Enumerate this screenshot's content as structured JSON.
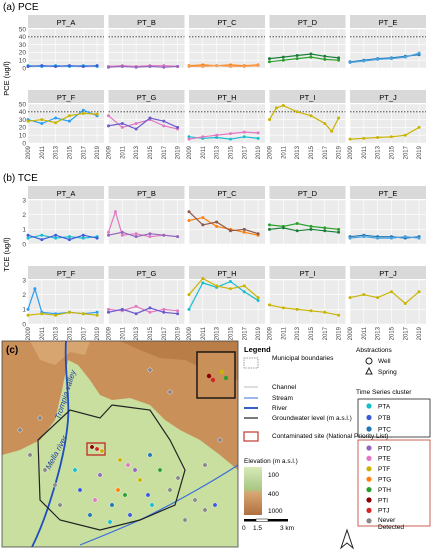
{
  "colors": {
    "panel_bg": "#ebebeb",
    "strip_bg": "#d9d9d9",
    "grid": "#ffffff",
    "threshold": "#333333",
    "land_low": "#c8dfa0",
    "land_high": "#c9905a",
    "river": "#1f4fbf",
    "basin": "#222222",
    "site": "#c0392b"
  },
  "chart_data": [
    {
      "type": "line",
      "title": "(a) PCE",
      "ylabel": "PCE (ug/l)",
      "ylim": [
        0,
        50
      ],
      "yticks": [
        0,
        10,
        20,
        30,
        40,
        50
      ],
      "xlim": [
        2009,
        2020
      ],
      "xticks": [
        "2009",
        "2011",
        "2013",
        "2015",
        "2017",
        "2019"
      ],
      "threshold": 40,
      "grid": true,
      "panels": [
        {
          "name": "PT_A",
          "series": [
            {
              "color": "#17becf",
              "x": [
                2009,
                2011,
                2013,
                2015,
                2017,
                2019
              ],
              "y": [
                3,
                2,
                3,
                2,
                3,
                2
              ]
            },
            {
              "color": "#3b5bdb",
              "x": [
                2009,
                2011,
                2013,
                2015,
                2017,
                2019
              ],
              "y": [
                2,
                3,
                2,
                3,
                2,
                3
              ]
            }
          ]
        },
        {
          "name": "PT_B",
          "series": [
            {
              "color": "#e377c2",
              "x": [
                2009,
                2011,
                2013,
                2015,
                2017,
                2019
              ],
              "y": [
                2,
                3,
                2,
                3,
                3,
                2
              ]
            },
            {
              "color": "#9467bd",
              "x": [
                2009,
                2011,
                2013,
                2015,
                2017,
                2019
              ],
              "y": [
                1,
                2,
                1,
                2,
                1,
                2
              ]
            }
          ]
        },
        {
          "name": "PT_C",
          "series": [
            {
              "color": "#ff7f0e",
              "x": [
                2009,
                2011,
                2013,
                2015,
                2017,
                2019
              ],
              "y": [
                3,
                4,
                3,
                4,
                3,
                4
              ]
            },
            {
              "color": "#f4a261",
              "x": [
                2009,
                2011,
                2013,
                2015,
                2017,
                2019
              ],
              "y": [
                2,
                2,
                3,
                2,
                2,
                3
              ]
            }
          ]
        },
        {
          "name": "PT_D",
          "series": [
            {
              "color": "#2ca02c",
              "x": [
                2009,
                2011,
                2013,
                2015,
                2017,
                2019
              ],
              "y": [
                8,
                10,
                12,
                14,
                11,
                10
              ]
            },
            {
              "color": "#1b7f3a",
              "x": [
                2009,
                2011,
                2013,
                2015,
                2017,
                2019
              ],
              "y": [
                12,
                14,
                16,
                18,
                15,
                13
              ]
            }
          ]
        },
        {
          "name": "PT_E",
          "series": [
            {
              "color": "#1f77b4",
              "x": [
                2009,
                2011,
                2013,
                2015,
                2017,
                2019
              ],
              "y": [
                8,
                10,
                12,
                13,
                15,
                17
              ]
            },
            {
              "color": "#4aa3df",
              "x": [
                2009,
                2011,
                2013,
                2015,
                2017,
                2019
              ],
              "y": [
                7,
                9,
                11,
                12,
                14,
                19
              ]
            }
          ]
        },
        {
          "name": "PT_F",
          "series": [
            {
              "color": "#2a9df4",
              "x": [
                2009,
                2011,
                2013,
                2015,
                2017,
                2019
              ],
              "y": [
                30,
                25,
                32,
                28,
                42,
                35
              ]
            },
            {
              "color": "#c9b400",
              "x": [
                2009,
                2011,
                2013,
                2015,
                2017,
                2019
              ],
              "y": [
                28,
                30,
                26,
                35,
                38,
                37
              ]
            }
          ]
        },
        {
          "name": "PT_G",
          "series": [
            {
              "color": "#e377c2",
              "x": [
                2009,
                2011,
                2013,
                2015,
                2017,
                2019
              ],
              "y": [
                35,
                20,
                25,
                30,
                22,
                18
              ]
            },
            {
              "color": "#6a5acd",
              "x": [
                2009,
                2011,
                2013,
                2015,
                2017,
                2019
              ],
              "y": [
                22,
                25,
                18,
                32,
                28,
                20
              ]
            }
          ]
        },
        {
          "name": "PT_H",
          "series": [
            {
              "color": "#17becf",
              "x": [
                2009,
                2011,
                2013,
                2015,
                2017,
                2019
              ],
              "y": [
                8,
                6,
                7,
                5,
                8,
                6
              ]
            },
            {
              "color": "#e377c2",
              "x": [
                2009,
                2011,
                2013,
                2015,
                2017,
                2019
              ],
              "y": [
                5,
                8,
                10,
                12,
                14,
                13
              ]
            }
          ]
        },
        {
          "name": "PT_I",
          "series": [
            {
              "color": "#c9b400",
              "x": [
                2009,
                2010,
                2011,
                2013,
                2015,
                2017,
                2018,
                2019
              ],
              "y": [
                30,
                45,
                48,
                40,
                35,
                25,
                15,
                32
              ]
            }
          ]
        },
        {
          "name": "PT_J",
          "series": [
            {
              "color": "#c9b400",
              "x": [
                2009,
                2011,
                2013,
                2015,
                2017,
                2019
              ],
              "y": [
                5,
                6,
                7,
                8,
                10,
                20
              ]
            }
          ]
        }
      ]
    },
    {
      "type": "line",
      "title": "(b) TCE",
      "ylabel": "TCE (ug/l)",
      "ylim": [
        0,
        3
      ],
      "yticks": [
        0,
        1,
        2,
        3
      ],
      "xlim": [
        2009,
        2020
      ],
      "xticks": [
        "2009",
        "2011",
        "2013",
        "2015",
        "2017",
        "2019"
      ],
      "grid": true,
      "panels": [
        {
          "name": "PT_A",
          "series": [
            {
              "color": "#17becf",
              "x": [
                2009,
                2011,
                2013,
                2015,
                2017,
                2019
              ],
              "y": [
                0.4,
                0.6,
                0.4,
                0.5,
                0.4,
                0.5
              ]
            },
            {
              "color": "#3b5bdb",
              "x": [
                2009,
                2011,
                2013,
                2015,
                2017,
                2019
              ],
              "y": [
                0.6,
                0.3,
                0.6,
                0.3,
                0.6,
                0.4
              ]
            }
          ]
        },
        {
          "name": "PT_B",
          "series": [
            {
              "color": "#e377c2",
              "x": [
                2009,
                2010,
                2011,
                2013,
                2015,
                2017,
                2019
              ],
              "y": [
                0.8,
                2.2,
                0.6,
                0.7,
                0.5,
                0.6,
                0.5
              ]
            },
            {
              "color": "#9467bd",
              "x": [
                2009,
                2011,
                2013,
                2015,
                2017,
                2019
              ],
              "y": [
                0.6,
                0.8,
                0.5,
                0.7,
                0.6,
                0.5
              ]
            }
          ]
        },
        {
          "name": "PT_C",
          "series": [
            {
              "color": "#ff7f0e",
              "x": [
                2009,
                2011,
                2013,
                2015,
                2017,
                2019
              ],
              "y": [
                1.6,
                1.8,
                1.2,
                1.0,
                0.8,
                0.6
              ]
            },
            {
              "color": "#8c564b",
              "x": [
                2009,
                2011,
                2013,
                2015,
                2017,
                2019
              ],
              "y": [
                2.2,
                1.3,
                1.5,
                0.9,
                1.0,
                0.7
              ]
            }
          ]
        },
        {
          "name": "PT_D",
          "series": [
            {
              "color": "#2ca02c",
              "x": [
                2009,
                2011,
                2013,
                2015,
                2017,
                2019
              ],
              "y": [
                1.3,
                1.2,
                1.4,
                1.2,
                1.1,
                1.0
              ]
            },
            {
              "color": "#1b7f3a",
              "x": [
                2009,
                2011,
                2013,
                2015,
                2017,
                2019
              ],
              "y": [
                1.0,
                1.1,
                0.9,
                1.0,
                0.9,
                0.8
              ]
            }
          ]
        },
        {
          "name": "PT_E",
          "series": [
            {
              "color": "#1f77b4",
              "x": [
                2009,
                2011,
                2013,
                2015,
                2017,
                2019
              ],
              "y": [
                0.5,
                0.6,
                0.5,
                0.5,
                0.4,
                0.5
              ]
            },
            {
              "color": "#4aa3df",
              "x": [
                2009,
                2011,
                2013,
                2015,
                2017,
                2019
              ],
              "y": [
                0.4,
                0.5,
                0.4,
                0.4,
                0.5,
                0.4
              ]
            }
          ]
        },
        {
          "name": "PT_F",
          "series": [
            {
              "color": "#2a9df4",
              "x": [
                2009,
                2010,
                2011,
                2013,
                2015,
                2017,
                2019
              ],
              "y": [
                1.0,
                2.4,
                0.8,
                0.7,
                0.8,
                0.7,
                0.8
              ]
            },
            {
              "color": "#c9b400",
              "x": [
                2009,
                2011,
                2013,
                2015,
                2017,
                2019
              ],
              "y": [
                0.6,
                0.7,
                0.6,
                0.8,
                0.7,
                0.6
              ]
            }
          ]
        },
        {
          "name": "PT_G",
          "series": [
            {
              "color": "#e377c2",
              "x": [
                2009,
                2011,
                2013,
                2015,
                2017,
                2019
              ],
              "y": [
                1.0,
                0.9,
                1.2,
                0.8,
                1.0,
                0.9
              ]
            },
            {
              "color": "#6a5acd",
              "x": [
                2009,
                2011,
                2013,
                2015,
                2017,
                2019
              ],
              "y": [
                0.8,
                1.0,
                0.7,
                1.1,
                0.8,
                0.7
              ]
            }
          ]
        },
        {
          "name": "PT_H",
          "series": [
            {
              "color": "#17becf",
              "x": [
                2009,
                2011,
                2013,
                2015,
                2017,
                2019
              ],
              "y": [
                1.0,
                2.8,
                2.5,
                2.9,
                2.2,
                1.6
              ]
            },
            {
              "color": "#c9b400",
              "x": [
                2009,
                2011,
                2013,
                2015,
                2017,
                2019
              ],
              "y": [
                2.0,
                3.1,
                2.6,
                2.4,
                2.6,
                1.8
              ]
            }
          ]
        },
        {
          "name": "PT_I",
          "series": [
            {
              "color": "#c9b400",
              "x": [
                2009,
                2011,
                2013,
                2015,
                2017,
                2019
              ],
              "y": [
                1.3,
                1.1,
                1.0,
                0.9,
                0.8,
                0.6
              ]
            }
          ]
        },
        {
          "name": "PT_J",
          "series": [
            {
              "color": "#c9b400",
              "x": [
                2009,
                2011,
                2013,
                2015,
                2017,
                2019
              ],
              "y": [
                1.8,
                2.0,
                1.8,
                2.2,
                1.4,
                2.2
              ]
            }
          ]
        }
      ]
    }
  ],
  "map": {
    "label": "(c)",
    "valley_label": "Trompia valley",
    "river_label": "Mella river"
  },
  "legend": {
    "title": "Legend",
    "items": [
      "Municipal boundaries",
      "Channel",
      "Stream",
      "River",
      "Groundwater level (m a.s.l.)",
      "Contaminated site (National Priority List)"
    ],
    "elevation_title": "Elevation (m a.s.l.)",
    "elevation_ticks": [
      "100",
      "400",
      "1000"
    ],
    "scale_labels": [
      "0",
      "1.5",
      "3 km"
    ],
    "abstractions_title": "Abstractions",
    "abstractions": [
      "Well",
      "Spring"
    ],
    "cluster_title": "Time Series cluster",
    "clusters": [
      {
        "label": "PTA",
        "color": "#17becf"
      },
      {
        "label": "PTB",
        "color": "#3b5bdb"
      },
      {
        "label": "PTC",
        "color": "#1f77b4"
      },
      {
        "label": "PTD",
        "color": "#9467bd"
      },
      {
        "label": "PTE",
        "color": "#e377c2"
      },
      {
        "label": "PTF",
        "color": "#c9b400"
      },
      {
        "label": "PTG",
        "color": "#ff7f0e"
      },
      {
        "label": "PTH",
        "color": "#2ca02c"
      },
      {
        "label": "PTI",
        "color": "#8b0000"
      },
      {
        "label": "PTJ",
        "color": "#d62728"
      },
      {
        "label": "Never Detected",
        "color": "#888888"
      }
    ]
  }
}
